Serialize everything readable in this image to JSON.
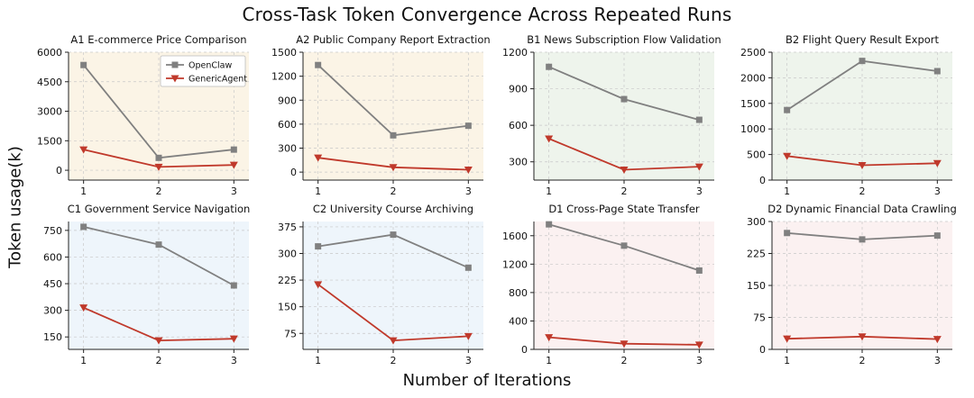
{
  "figure": {
    "title": "Cross-Task Token Convergence Across Repeated Runs",
    "ylabel": "Token  usage(k)",
    "xlabel": "Number of Iterations"
  },
  "legend": {
    "placement": "top-right of first panel",
    "entries": [
      "OpenClaw",
      "GenericAgent"
    ]
  },
  "colors": {
    "OpenClaw": "#808080",
    "GenericAgent": "#c0392b"
  },
  "chart_data": [
    {
      "type": "line",
      "title": "A1 E-commerce Price Comparison",
      "bg": "#fbf4e6",
      "x": [
        1,
        2,
        3
      ],
      "ylim": [
        -500,
        6000
      ],
      "yticks": [
        0,
        1500,
        3000,
        4500,
        6000
      ],
      "series": [
        {
          "name": "OpenClaw",
          "values": [
            5350,
            630,
            1050
          ]
        },
        {
          "name": "GenericAgent",
          "values": [
            1050,
            170,
            270
          ]
        }
      ]
    },
    {
      "type": "line",
      "title": "A2 Public Company Report Extraction",
      "bg": "#fbf4e6",
      "x": [
        1,
        2,
        3
      ],
      "ylim": [
        -100,
        1500
      ],
      "yticks": [
        0,
        300,
        600,
        900,
        1200,
        1500
      ],
      "series": [
        {
          "name": "OpenClaw",
          "values": [
            1340,
            460,
            580
          ]
        },
        {
          "name": "GenericAgent",
          "values": [
            180,
            60,
            30
          ]
        }
      ]
    },
    {
      "type": "line",
      "title": "B1 News Subscription Flow Validation",
      "bg": "#eef4ec",
      "x": [
        1,
        2,
        3
      ],
      "ylim": [
        150,
        1200
      ],
      "yticks": [
        300,
        600,
        900,
        1200
      ],
      "series": [
        {
          "name": "OpenClaw",
          "values": [
            1080,
            815,
            645
          ]
        },
        {
          "name": "GenericAgent",
          "values": [
            490,
            235,
            260
          ]
        }
      ]
    },
    {
      "type": "line",
      "title": "B2 Flight Query Result Export",
      "bg": "#eef4ec",
      "x": [
        1,
        2,
        3
      ],
      "ylim": [
        0,
        2500
      ],
      "yticks": [
        0,
        500,
        1000,
        1500,
        2000,
        2500
      ],
      "series": [
        {
          "name": "OpenClaw",
          "values": [
            1370,
            2330,
            2130
          ]
        },
        {
          "name": "GenericAgent",
          "values": [
            470,
            290,
            330
          ]
        }
      ]
    },
    {
      "type": "line",
      "title": "C1 Government Service Navigation",
      "bg": "#eef5fb",
      "x": [
        1,
        2,
        3
      ],
      "ylim": [
        80,
        800
      ],
      "yticks": [
        150,
        300,
        450,
        600,
        750
      ],
      "series": [
        {
          "name": "OpenClaw",
          "values": [
            770,
            670,
            440
          ]
        },
        {
          "name": "GenericAgent",
          "values": [
            315,
            130,
            140
          ]
        }
      ]
    },
    {
      "type": "line",
      "title": "C2 University Course Archiving",
      "bg": "#eef5fb",
      "x": [
        1,
        2,
        3
      ],
      "ylim": [
        30,
        390
      ],
      "yticks": [
        75,
        150,
        225,
        300,
        375
      ],
      "series": [
        {
          "name": "OpenClaw",
          "values": [
            320,
            353,
            260
          ]
        },
        {
          "name": "GenericAgent",
          "values": [
            213,
            55,
            67
          ]
        }
      ]
    },
    {
      "type": "line",
      "title": "D1 Cross-Page State Transfer",
      "bg": "#fbf1f1",
      "x": [
        1,
        2,
        3
      ],
      "ylim": [
        0,
        1800
      ],
      "yticks": [
        0,
        400,
        800,
        1200,
        1600
      ],
      "series": [
        {
          "name": "OpenClaw",
          "values": [
            1760,
            1460,
            1110
          ]
        },
        {
          "name": "GenericAgent",
          "values": [
            170,
            80,
            65
          ]
        }
      ]
    },
    {
      "type": "line",
      "title": "D2 Dynamic Financial Data Crawling",
      "bg": "#fbf1f1",
      "x": [
        1,
        2,
        3
      ],
      "ylim": [
        0,
        300
      ],
      "yticks": [
        0,
        75,
        150,
        225,
        300
      ],
      "series": [
        {
          "name": "OpenClaw",
          "values": [
            273,
            258,
            267
          ]
        },
        {
          "name": "GenericAgent",
          "values": [
            25,
            30,
            24
          ]
        }
      ]
    }
  ]
}
